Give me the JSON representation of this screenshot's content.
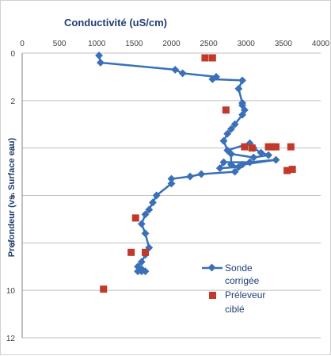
{
  "chart_data": {
    "type": "scatter",
    "title": "Conductivité  (uS/cm)",
    "xlabel": "",
    "ylabel": "Profondeur (vs. Surface eau)",
    "xlim": [
      0,
      4000
    ],
    "ylim": [
      0,
      12
    ],
    "y_inverted": true,
    "x_axis_position": "top",
    "x_ticks": [
      "0",
      "500",
      "1000",
      "1500",
      "2000",
      "2500",
      "3000",
      "3500",
      "4000"
    ],
    "y_ticks": [
      "0",
      "2",
      "4",
      "6",
      "8",
      "10",
      "12"
    ],
    "grid": "horizontal",
    "legend": "bottom-right",
    "series": [
      {
        "name": "Sonde corrigée",
        "style": "line-diamond",
        "color": "#3a70b8",
        "x": [
          1030,
          1050,
          2050,
          2150,
          2600,
          2550,
          2950,
          2900,
          2950,
          2950,
          2980,
          2950,
          2850,
          2800,
          2750,
          2700,
          2750,
          3050,
          3100,
          3200,
          3300,
          3100,
          2800,
          2800,
          2900,
          2650,
          2700,
          3050,
          3400,
          2950,
          2850,
          2400,
          2250,
          2000,
          2000,
          1800,
          1750,
          1700,
          1650,
          1600,
          1650,
          1700,
          1650,
          1600,
          1550,
          1600,
          1650,
          1600,
          1550
        ],
        "y": [
          0.1,
          0.4,
          0.7,
          0.85,
          1.0,
          1.1,
          1.15,
          1.5,
          2.1,
          2.2,
          2.4,
          2.6,
          3.0,
          3.2,
          3.4,
          3.7,
          4.1,
          3.8,
          4.0,
          4.2,
          4.3,
          4.4,
          4.25,
          4.7,
          4.8,
          4.85,
          4.6,
          4.6,
          4.5,
          4.7,
          5.0,
          5.1,
          5.2,
          5.3,
          5.5,
          6.0,
          6.3,
          6.6,
          6.8,
          7.2,
          7.6,
          8.2,
          8.5,
          8.8,
          9.0,
          9.1,
          9.2,
          9.2,
          9.2
        ]
      },
      {
        "name": "Préleveur ciblé",
        "style": "square",
        "color": "#c0392b",
        "x": [
          2450,
          2550,
          2730,
          3080,
          2980,
          3300,
          3350,
          3400,
          3600,
          3550,
          3620,
          1520,
          1650,
          1460,
          1090
        ],
        "y": [
          0.2,
          0.2,
          2.4,
          4.0,
          3.95,
          3.95,
          3.95,
          3.95,
          3.95,
          4.95,
          4.9,
          6.95,
          8.4,
          8.4,
          9.95
        ]
      }
    ]
  }
}
